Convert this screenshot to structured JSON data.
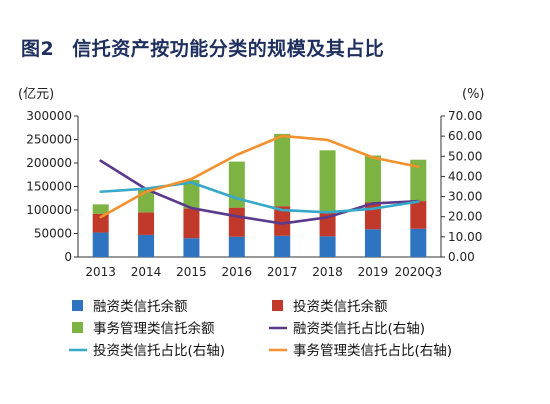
{
  "title": {
    "figure_label": "图2",
    "text": "信托资产按功能分类的规模及其占比"
  },
  "chart_data": {
    "type": "bar",
    "stacked": true,
    "categories": [
      "2013",
      "2014",
      "2015",
      "2016",
      "2017",
      "2018",
      "2019",
      "2020Q3"
    ],
    "y_unit_label": "(亿元)",
    "y2_unit_label": "(%)",
    "ylim": [
      0,
      300000
    ],
    "y_ticks": [
      "0",
      "50000",
      "100000",
      "150000",
      "200000",
      "250000",
      "300000"
    ],
    "y2lim": [
      0,
      70
    ],
    "y2_ticks": [
      "0.00",
      "10.00",
      "20.00",
      "30.00",
      "40.00",
      "50.00",
      "60.00",
      "70.00"
    ],
    "grid": false,
    "legend_position": "bottom",
    "bar_series": [
      {
        "name": "融资类信托余额",
        "color": "#2e74c0",
        "values": [
          52000,
          47000,
          40000,
          43000,
          45000,
          44000,
          59000,
          60000
        ]
      },
      {
        "name": "投资类信托余额",
        "color": "#c0392b",
        "values": [
          40000,
          48000,
          63000,
          62000,
          63000,
          53000,
          57000,
          59000
        ]
      },
      {
        "name": "事务管理类信托余额",
        "color": "#7cb342",
        "values": [
          20000,
          51000,
          61000,
          98000,
          154000,
          130000,
          100000,
          88000
        ]
      }
    ],
    "line_series": [
      {
        "name": "融资类信托占比(右轴)",
        "color": "#5b3a8c",
        "values": [
          47.8,
          33.7,
          24.3,
          20.2,
          16.6,
          19.7,
          26.6,
          27.7
        ]
      },
      {
        "name": "投资类信托占比(右轴)",
        "color": "#36a8c8",
        "values": [
          32.4,
          33.9,
          37.0,
          29.1,
          23.3,
          22.2,
          24.0,
          27.5
        ]
      },
      {
        "name": "事务管理类信托占比(右轴)",
        "color": "#f2912e",
        "values": [
          19.8,
          32.4,
          38.7,
          50.7,
          60.1,
          58.1,
          49.4,
          44.8
        ]
      }
    ]
  }
}
